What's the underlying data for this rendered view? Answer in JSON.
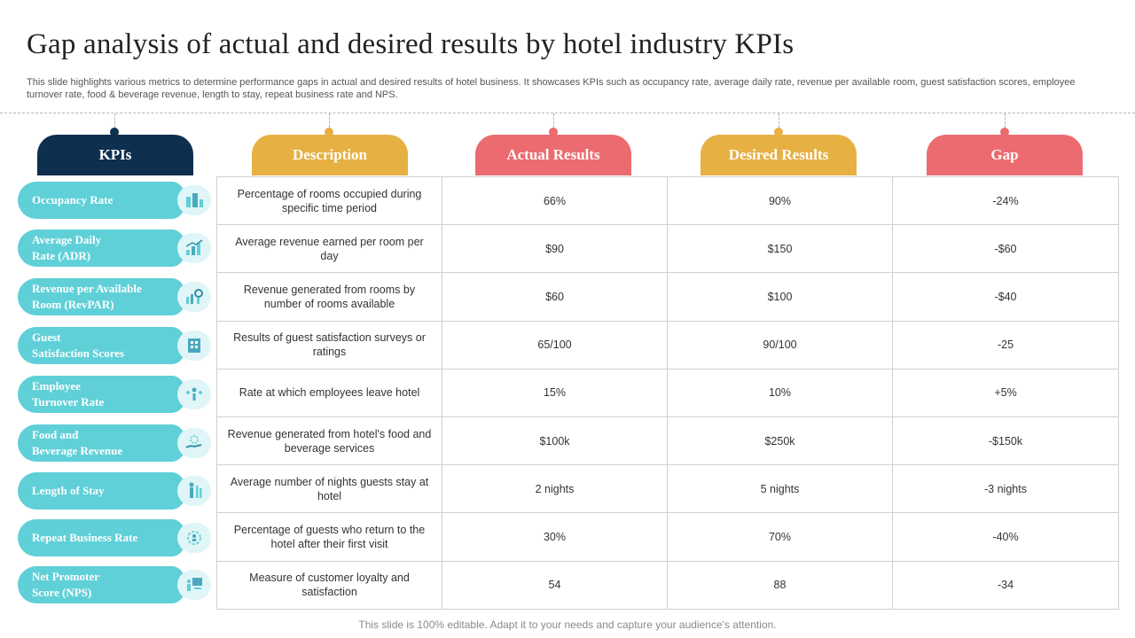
{
  "title": "Gap analysis of actual and desired results by hotel industry KPIs",
  "subtitle": "This slide highlights various metrics to determine performance gaps in actual and desired results of hotel business. It showcases KPIs such as occupancy rate, average daily rate, revenue per available room, guest satisfaction scores, employee turnover rate, food & beverage revenue, length to stay, repeat business rate and NPS.",
  "headers": {
    "kpis": "KPIs",
    "description": "Description",
    "actual": "Actual Results",
    "desired": "Desired Results",
    "gap": "Gap"
  },
  "colors": {
    "navy": "#0f2f4f",
    "gold": "#e6b043",
    "coral": "#eb6b70",
    "teal": "#5fd0d8",
    "icon_bg": "#e0f5f7"
  },
  "rows": [
    {
      "kpi_line1": "Occupancy Rate",
      "kpi_line2": "",
      "icon": "building-chart-icon",
      "description": "Percentage of rooms occupied during specific time period",
      "actual": "66%",
      "desired": "90%",
      "gap": "-24%"
    },
    {
      "kpi_line1": "Average Daily",
      "kpi_line2": "Rate (ADR)",
      "icon": "bar-chart-icon",
      "description": "Average revenue earned per room per day",
      "actual": "$90",
      "desired": "$150",
      "gap": "-$60"
    },
    {
      "kpi_line1": "Revenue per Available",
      "kpi_line2": "Room (RevPAR)",
      "icon": "chart-gear-icon",
      "description": "Revenue generated from rooms by number of rooms available",
      "actual": "$60",
      "desired": "$100",
      "gap": "-$40"
    },
    {
      "kpi_line1": "Guest",
      "kpi_line2": "Satisfaction Scores",
      "icon": "hotel-building-icon",
      "description": "Results of guest satisfaction surveys or ratings",
      "actual": "65/100",
      "desired": "90/100",
      "gap": "-25"
    },
    {
      "kpi_line1": "Employee",
      "kpi_line2": "Turnover Rate",
      "icon": "people-network-icon",
      "description": "Rate at which employees leave hotel",
      "actual": "15%",
      "desired": "10%",
      "gap": "+5%"
    },
    {
      "kpi_line1": "Food and",
      "kpi_line2": "Beverage Revenue",
      "icon": "hand-coins-icon",
      "description": "Revenue generated from hotel's food and beverage services",
      "actual": "$100k",
      "desired": "$250k",
      "gap": "-$150k"
    },
    {
      "kpi_line1": "Length of Stay",
      "kpi_line2": "",
      "icon": "person-bars-icon",
      "description": "Average number of nights guests stay at hotel",
      "actual": "2 nights",
      "desired": "5 nights",
      "gap": "-3 nights"
    },
    {
      "kpi_line1": "Repeat Business Rate",
      "kpi_line2": "",
      "icon": "user-cycle-icon",
      "description": "Percentage of guests who return to the hotel after their first visit",
      "actual": "30%",
      "desired": "70%",
      "gap": "-40%"
    },
    {
      "kpi_line1": "Net Promoter",
      "kpi_line2": "Score (NPS)",
      "icon": "presenter-board-icon",
      "description": "Measure of customer loyalty and satisfaction",
      "actual": "54",
      "desired": "88",
      "gap": "-34"
    }
  ],
  "footer": "This slide is 100% editable. Adapt it to your needs and capture your audience's attention."
}
